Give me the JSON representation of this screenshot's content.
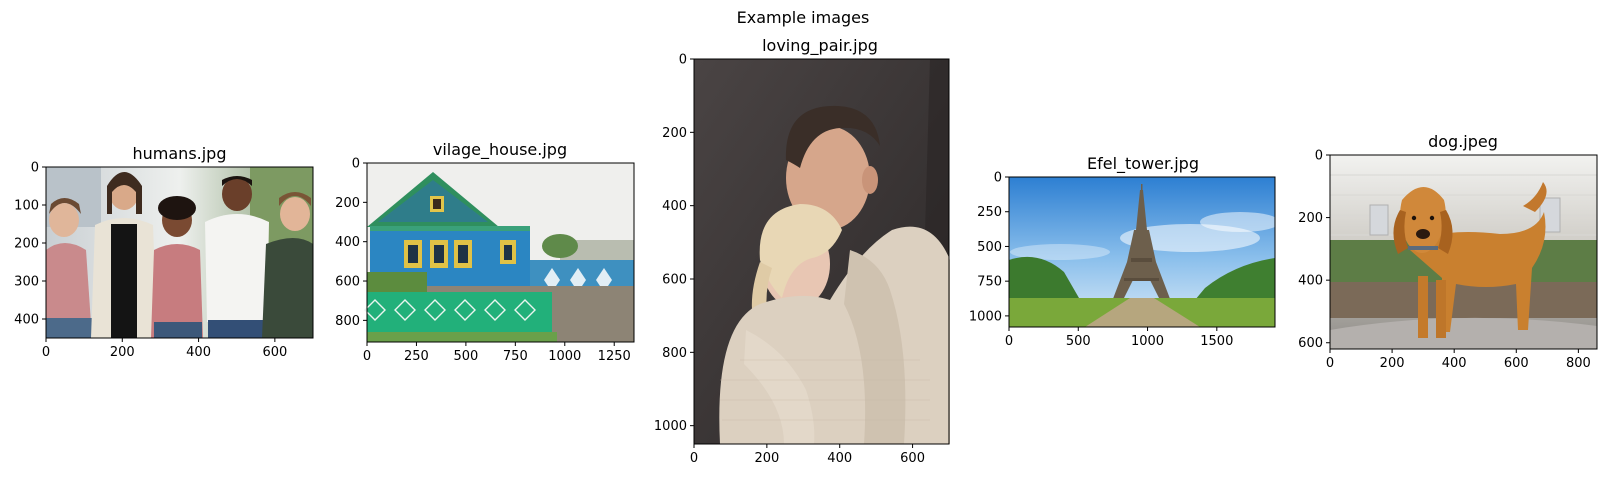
{
  "figure": {
    "suptitle": "Example images"
  },
  "chart_data": [
    {
      "type": "image",
      "title": "humans.jpg",
      "scene": "humans",
      "xlim": [
        0,
        700
      ],
      "ylim": [
        450,
        0
      ],
      "xticks": [
        0,
        200,
        400,
        600
      ],
      "yticks": [
        0,
        100,
        200,
        300,
        400
      ]
    },
    {
      "type": "image",
      "title": "vilage_house.jpg",
      "scene": "house",
      "xlim": [
        0,
        1350
      ],
      "ylim": [
        910,
        0
      ],
      "xticks": [
        0,
        250,
        500,
        750,
        1000,
        1250
      ],
      "yticks": [
        0,
        200,
        400,
        600,
        800
      ]
    },
    {
      "type": "image",
      "title": "loving_pair.jpg",
      "scene": "couple",
      "xlim": [
        0,
        700
      ],
      "ylim": [
        1050,
        0
      ],
      "xticks": [
        0,
        200,
        400,
        600
      ],
      "yticks": [
        0,
        200,
        400,
        600,
        800,
        1000
      ]
    },
    {
      "type": "image",
      "title": "Efel_tower.jpg",
      "scene": "tower",
      "xlim": [
        0,
        1920
      ],
      "ylim": [
        1080,
        0
      ],
      "xticks": [
        0,
        500,
        1000,
        1500
      ],
      "yticks": [
        0,
        250,
        500,
        750,
        1000
      ]
    },
    {
      "type": "image",
      "title": "dog.jpeg",
      "scene": "dog",
      "xlim": [
        0,
        860
      ],
      "ylim": [
        620,
        0
      ],
      "xticks": [
        0,
        200,
        400,
        600,
        800
      ],
      "yticks": [
        0,
        200,
        400,
        600
      ]
    }
  ]
}
